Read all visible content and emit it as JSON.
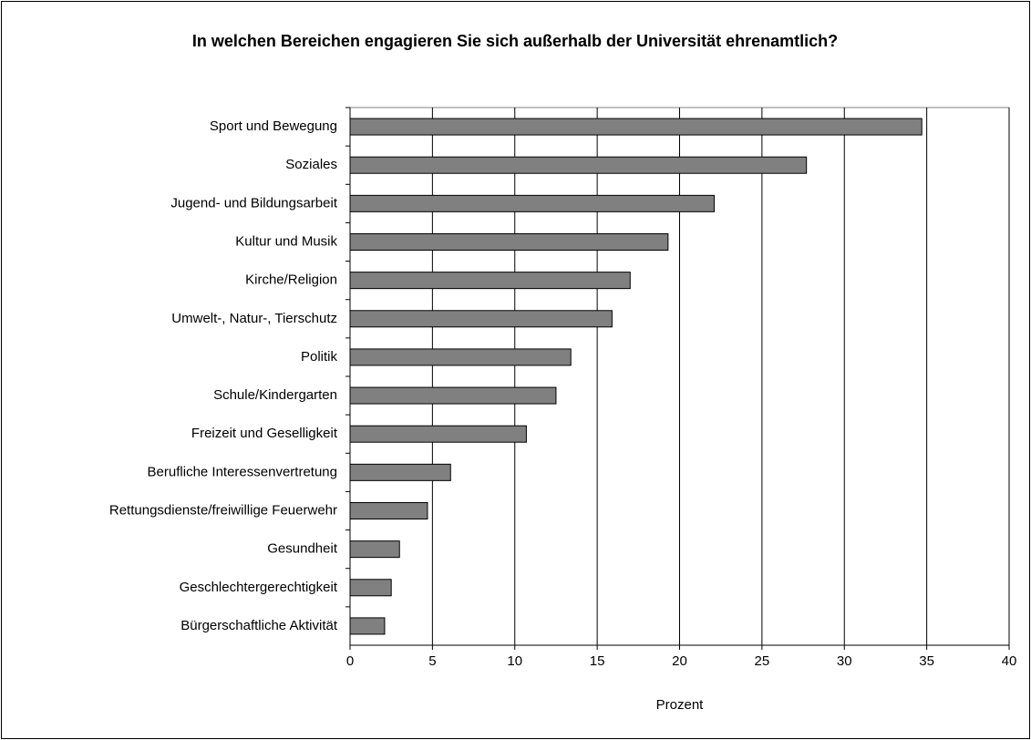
{
  "chart_data": {
    "type": "bar",
    "orientation": "horizontal",
    "title": "In welchen Bereichen engagieren Sie sich außerhalb der Universität ehrenamtlich?",
    "x_label": "Prozent",
    "categories": [
      "Sport und Bewegung",
      "Soziales",
      "Jugend- und Bildungsarbeit",
      "Kultur und Musik",
      "Kirche/Religion",
      "Umwelt-, Natur-, Tierschutz",
      "Politik",
      "Schule/Kindergarten",
      "Freizeit und Geselligkeit",
      "Berufliche Interessenvertretung",
      "Rettungsdienste/freiwillige Feuerwehr",
      "Gesundheit",
      "Geschlechtergerechtigkeit",
      "Bürgerschaftliche Aktivität"
    ],
    "values": [
      34.7,
      27.7,
      22.1,
      19.3,
      17.0,
      15.9,
      13.4,
      12.5,
      10.7,
      6.1,
      4.7,
      3.0,
      2.5,
      2.1
    ],
    "color": "#808080",
    "xlim": [
      0,
      40
    ],
    "xticks": [
      0,
      5,
      10,
      15,
      20,
      25,
      30,
      35,
      40
    ],
    "grid": true
  }
}
